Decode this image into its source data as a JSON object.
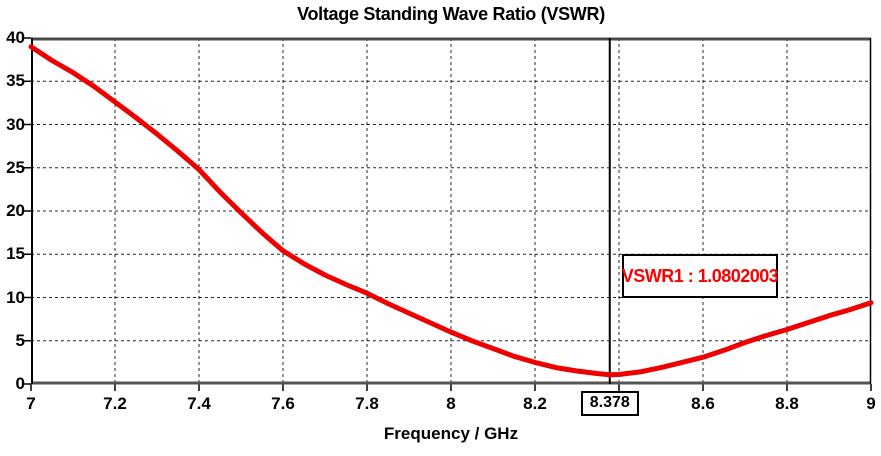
{
  "chart_data": {
    "type": "line",
    "title": "Voltage Standing Wave Ratio (VSWR)",
    "xlabel": "Frequency / GHz",
    "ylabel": "",
    "xlim": [
      7,
      9
    ],
    "ylim": [
      0,
      40
    ],
    "grid": true,
    "x_gridlines": [
      7.2,
      7.4,
      7.6,
      7.8,
      8.0,
      8.2,
      8.4,
      8.6,
      8.8
    ],
    "y_gridlines": [
      5,
      10,
      15,
      20,
      25,
      30,
      35
    ],
    "x_tick_marks": [
      7.0,
      7.2,
      7.4,
      7.6,
      7.8,
      8.0,
      8.2,
      8.4,
      8.6,
      8.8,
      9.0
    ],
    "x_tick_labels": [
      {
        "value": 7.0,
        "label": "7"
      },
      {
        "value": 7.2,
        "label": "7.2"
      },
      {
        "value": 7.4,
        "label": "7.4"
      },
      {
        "value": 7.6,
        "label": "7.6"
      },
      {
        "value": 7.8,
        "label": "7.8"
      },
      {
        "value": 8.0,
        "label": "8"
      },
      {
        "value": 8.2,
        "label": "8.2"
      },
      {
        "value": 8.6,
        "label": "8.6"
      },
      {
        "value": 8.8,
        "label": "8.8"
      },
      {
        "value": 9.0,
        "label": "9"
      }
    ],
    "y_tick_labels": [
      {
        "value": 0,
        "label": "0"
      },
      {
        "value": 5,
        "label": "5"
      },
      {
        "value": 10,
        "label": "10"
      },
      {
        "value": 15,
        "label": "15"
      },
      {
        "value": 20,
        "label": "20"
      },
      {
        "value": 25,
        "label": "25"
      },
      {
        "value": 30,
        "label": "30"
      },
      {
        "value": 35,
        "label": "35"
      },
      {
        "value": 40,
        "label": "40"
      }
    ],
    "series": [
      {
        "name": "VSWR1",
        "color": "#ee0000",
        "points": [
          [
            7.0,
            39.0
          ],
          [
            7.05,
            37.4
          ],
          [
            7.1,
            36.0
          ],
          [
            7.15,
            34.4
          ],
          [
            7.2,
            32.6
          ],
          [
            7.25,
            30.8
          ],
          [
            7.3,
            28.9
          ],
          [
            7.35,
            26.9
          ],
          [
            7.4,
            24.8
          ],
          [
            7.45,
            22.2
          ],
          [
            7.5,
            19.8
          ],
          [
            7.55,
            17.5
          ],
          [
            7.6,
            15.4
          ],
          [
            7.65,
            13.9
          ],
          [
            7.7,
            12.6
          ],
          [
            7.75,
            11.5
          ],
          [
            7.8,
            10.5
          ],
          [
            7.85,
            9.3
          ],
          [
            7.9,
            8.2
          ],
          [
            7.95,
            7.1
          ],
          [
            8.0,
            6.0
          ],
          [
            8.05,
            5.0
          ],
          [
            8.1,
            4.1
          ],
          [
            8.15,
            3.2
          ],
          [
            8.2,
            2.5
          ],
          [
            8.25,
            1.9
          ],
          [
            8.3,
            1.5
          ],
          [
            8.35,
            1.2
          ],
          [
            8.378,
            1.08
          ],
          [
            8.4,
            1.1
          ],
          [
            8.45,
            1.4
          ],
          [
            8.5,
            1.9
          ],
          [
            8.55,
            2.5
          ],
          [
            8.6,
            3.1
          ],
          [
            8.65,
            3.9
          ],
          [
            8.7,
            4.8
          ],
          [
            8.75,
            5.6
          ],
          [
            8.8,
            6.3
          ],
          [
            8.85,
            7.1
          ],
          [
            8.9,
            7.9
          ],
          [
            8.95,
            8.6
          ],
          [
            9.0,
            9.4
          ]
        ]
      }
    ],
    "marker": {
      "x": 8.378,
      "x_label": "8.378",
      "value": 1.0802003,
      "annotation": "VSWR1 : 1.0802003",
      "annotation_text_color": "#ff0000",
      "line_color": "#000000"
    },
    "style": {
      "grid_color": "#000000",
      "axis_color": "#555555",
      "border_color": "#000000",
      "background": "#ffffff"
    }
  }
}
